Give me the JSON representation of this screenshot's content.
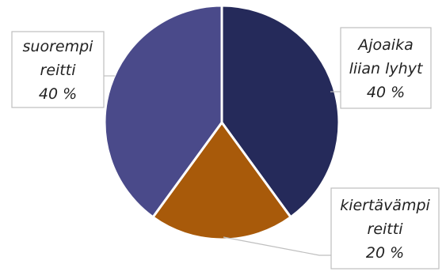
{
  "chart_data": {
    "type": "pie",
    "title": "",
    "slices": [
      {
        "label_lines": [
          "Ajoaika",
          "liian lyhyt",
          "40 %"
        ],
        "value": 40,
        "color": "#252a5a"
      },
      {
        "label_lines": [
          "kiertävämpi",
          "reitti",
          "20 %"
        ],
        "value": 20,
        "color": "#a85a0a"
      },
      {
        "label_lines": [
          "suorempi",
          "reitti",
          "40 %"
        ],
        "value": 40,
        "color": "#4a4a8a"
      }
    ],
    "start_angle_deg": 0,
    "direction": "clockwise",
    "legend": "none",
    "data_labels": "callouts"
  }
}
